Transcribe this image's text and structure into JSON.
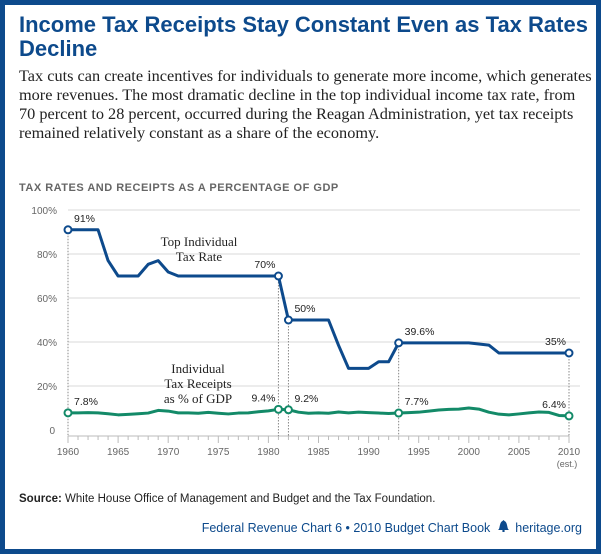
{
  "title": "Income Tax Receipts Stay Constant Even as Tax Rates Decline",
  "description": "Tax cuts can create incentives for individuals to generate more income, which generates more revenues. The most dramatic decline in the top individual income tax rate, from 70 percent to 28 percent, occurred during the Reagan Administration, yet tax receipts remained relatively constant as a share of the economy.",
  "source": {
    "label": "Source:",
    "text": " White House Office of Management and Budget and the Tax Foundation."
  },
  "footer": {
    "chart_ref": "Federal Revenue Chart 6 • 2010 Budget Chart Book",
    "site": "heritage.org",
    "icon": "liberty-bell-icon"
  },
  "colors": {
    "rate": "#0d4a8c",
    "receipts": "#138a68",
    "border": "#0d4a8c"
  },
  "chart_data": {
    "type": "line",
    "title": "TAX RATES AND RECEIPTS AS A PERCENTAGE OF GDP",
    "x": [
      1960,
      1961,
      1962,
      1963,
      1964,
      1965,
      1966,
      1967,
      1968,
      1969,
      1970,
      1971,
      1972,
      1973,
      1974,
      1975,
      1976,
      1977,
      1978,
      1979,
      1980,
      1981,
      1982,
      1983,
      1984,
      1985,
      1986,
      1987,
      1988,
      1989,
      1990,
      1991,
      1992,
      1993,
      1994,
      1995,
      1996,
      1997,
      1998,
      1999,
      2000,
      2001,
      2002,
      2003,
      2004,
      2005,
      2006,
      2007,
      2008,
      2009,
      2010
    ],
    "xlim": [
      1960,
      2010
    ],
    "xticks": [
      1960,
      1965,
      1970,
      1975,
      1980,
      1985,
      1990,
      1995,
      2000,
      2005,
      2010
    ],
    "xtick_labels": [
      "1960",
      "1965",
      "1970",
      "1975",
      "1980",
      "1985",
      "1990",
      "1995",
      "2000",
      "2005",
      "2010"
    ],
    "xtick_note": "(est.)",
    "ylim": [
      0,
      100
    ],
    "yticks": [
      0,
      20,
      40,
      60,
      80,
      100
    ],
    "ytick_labels": [
      "0",
      "20%",
      "40%",
      "60%",
      "80%",
      "100%"
    ],
    "grid": true,
    "series": [
      {
        "name": "Top Individual Tax Rate",
        "color": "#0d4a8c",
        "values": [
          91,
          91,
          91,
          91,
          77,
          70,
          70,
          70,
          75.3,
          77,
          71.8,
          70,
          70,
          70,
          70,
          70,
          70,
          70,
          70,
          70,
          70,
          70,
          50,
          50,
          50,
          50,
          50,
          38.5,
          28,
          28,
          28,
          31,
          31,
          39.6,
          39.6,
          39.6,
          39.6,
          39.6,
          39.6,
          39.6,
          39.6,
          39.1,
          38.6,
          35,
          35,
          35,
          35,
          35,
          35,
          35,
          35
        ],
        "annotations": [
          {
            "x": 1960,
            "label": "91%"
          },
          {
            "x": 1981,
            "label": "70%"
          },
          {
            "x": 1982,
            "label": "50%"
          },
          {
            "x": 1993,
            "label": "39.6%"
          },
          {
            "x": 2010,
            "label": "35%"
          }
        ]
      },
      {
        "name": "Individual Tax Receipts as % of GDP",
        "color": "#138a68",
        "values": [
          7.8,
          7.8,
          7.9,
          7.8,
          7.4,
          6.9,
          7.1,
          7.4,
          7.7,
          8.9,
          8.6,
          7.8,
          7.8,
          7.6,
          8.0,
          7.6,
          7.3,
          7.7,
          7.8,
          8.3,
          8.7,
          9.4,
          9.2,
          8.1,
          7.6,
          7.8,
          7.6,
          8.2,
          7.8,
          8.1,
          7.9,
          7.7,
          7.5,
          7.7,
          7.9,
          8.1,
          8.6,
          9.1,
          9.4,
          9.5,
          10.0,
          9.5,
          8.1,
          7.2,
          6.9,
          7.3,
          7.8,
          8.2,
          8.0,
          6.6,
          6.4
        ],
        "annotations": [
          {
            "x": 1960,
            "label": "7.8%"
          },
          {
            "x": 1981,
            "label": "9.4%"
          },
          {
            "x": 1982,
            "label": "9.2%"
          },
          {
            "x": 1993,
            "label": "7.7%"
          },
          {
            "x": 2010,
            "label": "6.4%"
          }
        ]
      }
    ],
    "series_labels": [
      {
        "series": 0,
        "lines": [
          "Top Individual",
          "Tax Rate"
        ]
      },
      {
        "series": 1,
        "lines": [
          "Individual",
          "Tax Receipts",
          "as % of GDP"
        ]
      }
    ]
  }
}
